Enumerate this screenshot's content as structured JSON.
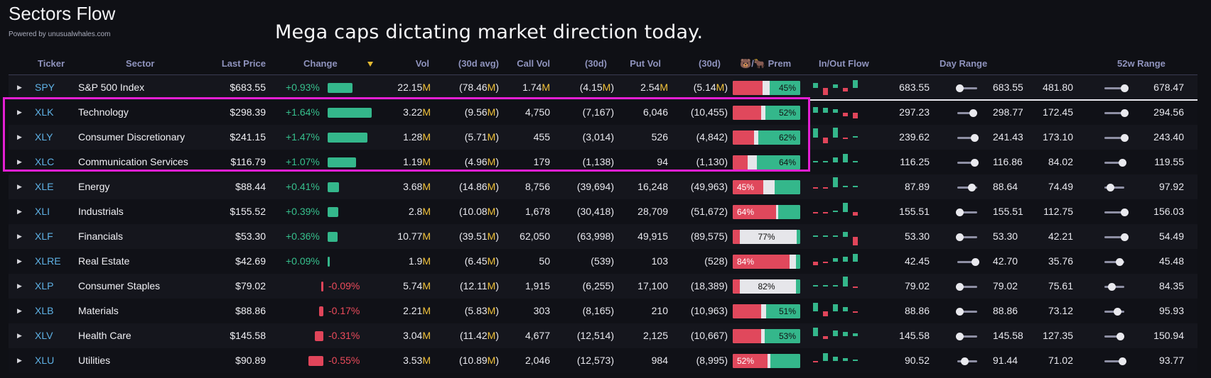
{
  "app": {
    "title": "Sectors Flow",
    "powered_by": "Powered by unusualwhales.com",
    "annotation": "Mega caps dictating market direction today."
  },
  "colors": {
    "background": "#0f1015",
    "positive": "#36c08d",
    "negative": "#ec4b5b",
    "ticker": "#5fb2e6",
    "million_suffix": "#f2c33b",
    "highlight_box": "#e41fd3"
  },
  "headers": {
    "ticker": "Ticker",
    "sector": "Sector",
    "last_price": "Last Price",
    "change": "Change",
    "vol": "Vol",
    "vol_avg": "(30d avg)",
    "call_vol": "Call Vol",
    "call_30d": "(30d)",
    "put_vol": "Put Vol",
    "put_30d": "(30d)",
    "prem_bear": "🐻",
    "prem_sep": "/",
    "prem_bull": "🐂",
    "prem": "Prem",
    "flow": "In/Out Flow",
    "day_range": "Day Range",
    "wk52_range": "52w Range"
  },
  "rows": [
    {
      "ticker": "SPY",
      "sector": "S&P 500 Index",
      "price": "$683.55",
      "change": "+0.93%",
      "change_pct": 0.93,
      "vol": "22.15",
      "vol_unit": "M",
      "vol_avg_open": "(78.46",
      "vol_avg_unit": "M",
      "vol_avg_close": ")",
      "call_vol": "1.74",
      "call_vol_unit": "M",
      "call_30d_open": "(4.15",
      "call_30d_unit": "M",
      "call_30d_close": ")",
      "put_vol": "2.54",
      "put_vol_unit": "M",
      "put_30d_open": "(5.14",
      "put_30d_unit": "M",
      "put_30d_close": ")",
      "prem_label": "45%",
      "prem_label_side": "bull",
      "bear_pct": 0.44,
      "bull_pct": 0.45,
      "flow": [
        0.3,
        -0.4,
        0.2,
        -0.2,
        0.45
      ],
      "day_low": "683.55",
      "day_high": "683.55",
      "day_pos": 0.1,
      "wk_low": "481.80",
      "wk_high": "678.47",
      "wk_pos": 1.0
    },
    {
      "ticker": "XLK",
      "sector": "Technology",
      "price": "$298.39",
      "change": "+1.64%",
      "change_pct": 1.64,
      "vol": "3.22",
      "vol_unit": "M",
      "vol_avg_open": "(9.56",
      "vol_avg_unit": "M",
      "vol_avg_close": ")",
      "call_vol": "4,750",
      "call_30d_open": "(7,167",
      "call_30d_close": ")",
      "put_vol": "6,046",
      "put_30d_open": "(10,455",
      "put_30d_close": ")",
      "prem_label": "52%",
      "prem_label_side": "bull",
      "bear_pct": 0.42,
      "bull_pct": 0.52,
      "flow": [
        0.35,
        0.3,
        0.2,
        -0.2,
        -0.35
      ],
      "day_low": "297.23",
      "day_high": "298.77",
      "day_pos": 0.8,
      "wk_low": "172.45",
      "wk_high": "294.56",
      "wk_pos": 1.0
    },
    {
      "ticker": "XLY",
      "sector": "Consumer Discretionary",
      "price": "$241.15",
      "change": "+1.47%",
      "change_pct": 1.47,
      "vol": "1.28",
      "vol_unit": "M",
      "vol_avg_open": "(5.71",
      "vol_avg_unit": "M",
      "vol_avg_close": ")",
      "call_vol": "455",
      "call_30d_open": "(3,014",
      "call_30d_close": ")",
      "put_vol": "526",
      "put_30d_open": "(4,842",
      "put_30d_close": ")",
      "prem_label": "62%",
      "prem_label_side": "bull",
      "bear_pct": 0.32,
      "bull_pct": 0.62,
      "flow": [
        0.55,
        -0.35,
        0.6,
        -0.1,
        0.0
      ],
      "day_low": "239.62",
      "day_high": "241.43",
      "day_pos": 0.85,
      "wk_low": "173.10",
      "wk_high": "243.40",
      "wk_pos": 1.0
    },
    {
      "ticker": "XLC",
      "sector": "Communication Services",
      "price": "$116.79",
      "change": "+1.07%",
      "change_pct": 1.07,
      "vol": "1.19",
      "vol_unit": "M",
      "vol_avg_open": "(4.96",
      "vol_avg_unit": "M",
      "vol_avg_close": ")",
      "call_vol": "179",
      "call_30d_open": "(1,138",
      "call_30d_close": ")",
      "put_vol": "94",
      "put_30d_open": "(1,130",
      "put_30d_close": ")",
      "prem_label": "64%",
      "prem_label_side": "bull",
      "bear_pct": 0.22,
      "bull_pct": 0.64,
      "flow": [
        0.0,
        0.1,
        0.3,
        0.5,
        0.0
      ],
      "day_low": "116.25",
      "day_high": "116.86",
      "day_pos": 0.85,
      "wk_low": "84.02",
      "wk_high": "119.55",
      "wk_pos": 0.9
    },
    {
      "ticker": "XLE",
      "sector": "Energy",
      "price": "$88.44",
      "change": "+0.41%",
      "change_pct": 0.41,
      "vol": "3.68",
      "vol_unit": "M",
      "vol_avg_open": "(14.86",
      "vol_avg_unit": "M",
      "vol_avg_close": ")",
      "call_vol": "8,756",
      "call_30d_open": "(39,694",
      "call_30d_close": ")",
      "put_vol": "16,248",
      "put_30d_open": "(49,963",
      "put_30d_close": ")",
      "prem_label": "45%",
      "prem_label_side": "bear",
      "bear_pct": 0.45,
      "bull_pct": 0.38,
      "flow": [
        -0.05,
        -0.05,
        0.6,
        0.0,
        0.0
      ],
      "day_low": "87.89",
      "day_high": "88.64",
      "day_pos": 0.7,
      "wk_low": "74.49",
      "wk_high": "97.92",
      "wk_pos": 0.3
    },
    {
      "ticker": "XLI",
      "sector": "Industrials",
      "price": "$155.52",
      "change": "+0.39%",
      "change_pct": 0.39,
      "vol": "2.8",
      "vol_unit": "M",
      "vol_avg_open": "(10.08",
      "vol_avg_unit": "M",
      "vol_avg_close": ")",
      "call_vol": "1,678",
      "call_30d_open": "(30,418",
      "call_30d_close": ")",
      "put_vol": "28,709",
      "put_30d_open": "(51,672",
      "put_30d_close": ")",
      "prem_label": "64%",
      "prem_label_side": "bear",
      "bear_pct": 0.64,
      "bull_pct": 0.33,
      "flow": [
        -0.05,
        -0.1,
        0.0,
        0.55,
        -0.2
      ],
      "day_low": "155.51",
      "day_high": "155.51",
      "day_pos": 0.1,
      "wk_low": "112.75",
      "wk_high": "156.03",
      "wk_pos": 1.0
    },
    {
      "ticker": "XLF",
      "sector": "Financials",
      "price": "$53.30",
      "change": "+0.36%",
      "change_pct": 0.36,
      "vol": "10.77",
      "vol_unit": "M",
      "vol_avg_open": "(39.51",
      "vol_avg_unit": "M",
      "vol_avg_close": ")",
      "call_vol": "62,050",
      "call_30d_open": "(63,998",
      "call_30d_close": ")",
      "put_vol": "49,915",
      "put_30d_open": "(89,575",
      "put_30d_close": ")",
      "prem_label": "77%",
      "prem_label_side": "mid",
      "bear_pct": 0.1,
      "bull_pct": 0.05,
      "flow": [
        0.05,
        0.0,
        0.0,
        0.3,
        -0.5
      ],
      "day_low": "53.30",
      "day_high": "53.30",
      "day_pos": 0.1,
      "wk_low": "42.21",
      "wk_high": "54.49",
      "wk_pos": 1.0
    },
    {
      "ticker": "XLRE",
      "sector": "Real Estate",
      "price": "$42.69",
      "change": "+0.09%",
      "change_pct": 0.09,
      "vol": "1.9",
      "vol_unit": "M",
      "vol_avg_open": "(6.45",
      "vol_avg_unit": "M",
      "vol_avg_close": ")",
      "call_vol": "50",
      "call_30d_open": "(539",
      "call_30d_close": ")",
      "put_vol": "103",
      "put_30d_open": "(528",
      "put_30d_close": ")",
      "prem_label": "84%",
      "prem_label_side": "bear",
      "bear_pct": 0.84,
      "bull_pct": 0.06,
      "flow": [
        -0.2,
        -0.05,
        0.2,
        0.3,
        0.45
      ],
      "day_low": "42.45",
      "day_high": "42.70",
      "day_pos": 0.9,
      "wk_low": "35.76",
      "wk_high": "45.48",
      "wk_pos": 0.75
    },
    {
      "ticker": "XLP",
      "sector": "Consumer Staples",
      "price": "$79.02",
      "change": "-0.09%",
      "change_pct": -0.09,
      "vol": "5.74",
      "vol_unit": "M",
      "vol_avg_open": "(12.11",
      "vol_avg_unit": "M",
      "vol_avg_close": ")",
      "call_vol": "1,915",
      "call_30d_open": "(6,255",
      "call_30d_close": ")",
      "put_vol": "17,100",
      "put_30d_open": "(18,389",
      "put_30d_close": ")",
      "prem_label": "82%",
      "prem_label_side": "mid",
      "bear_pct": 0.1,
      "bull_pct": 0.06,
      "flow": [
        0.0,
        0.0,
        0.0,
        0.6,
        -0.05
      ],
      "day_low": "79.02",
      "day_high": "79.02",
      "day_pos": 0.1,
      "wk_low": "75.61",
      "wk_high": "84.35",
      "wk_pos": 0.35
    },
    {
      "ticker": "XLB",
      "sector": "Materials",
      "price": "$88.86",
      "change": "-0.17%",
      "change_pct": -0.17,
      "vol": "2.21",
      "vol_unit": "M",
      "vol_avg_open": "(5.83",
      "vol_avg_unit": "M",
      "vol_avg_close": ")",
      "call_vol": "303",
      "call_30d_open": "(8,165",
      "call_30d_close": ")",
      "put_vol": "210",
      "put_30d_open": "(10,963",
      "put_30d_close": ")",
      "prem_label": "51%",
      "prem_label_side": "bull",
      "bear_pct": 0.42,
      "bull_pct": 0.51,
      "flow": [
        0.5,
        -0.3,
        0.4,
        0.25,
        -0.1
      ],
      "day_low": "88.86",
      "day_high": "88.86",
      "day_pos": 0.1,
      "wk_low": "73.12",
      "wk_high": "95.93",
      "wk_pos": 0.65
    },
    {
      "ticker": "XLV",
      "sector": "Health Care",
      "price": "$145.58",
      "change": "-0.31%",
      "change_pct": -0.31,
      "vol": "3.04",
      "vol_unit": "M",
      "vol_avg_open": "(11.42",
      "vol_avg_unit": "M",
      "vol_avg_close": ")",
      "call_vol": "4,677",
      "call_30d_open": "(12,514",
      "call_30d_close": ")",
      "put_vol": "2,125",
      "put_30d_open": "(10,667",
      "put_30d_close": ")",
      "prem_label": "53%",
      "prem_label_side": "bull",
      "bear_pct": 0.42,
      "bull_pct": 0.53,
      "flow": [
        0.5,
        -0.15,
        0.35,
        0.25,
        0.15
      ],
      "day_low": "145.58",
      "day_high": "145.58",
      "day_pos": 0.1,
      "wk_low": "127.35",
      "wk_high": "150.94",
      "wk_pos": 0.8
    },
    {
      "ticker": "XLU",
      "sector": "Utilities",
      "price": "$90.89",
      "change": "-0.55%",
      "change_pct": -0.55,
      "vol": "3.53",
      "vol_unit": "M",
      "vol_avg_open": "(10.89",
      "vol_avg_unit": "M",
      "vol_avg_close": ")",
      "call_vol": "2,046",
      "call_30d_open": "(12,573",
      "call_30d_close": ")",
      "put_vol": "984",
      "put_30d_open": "(8,995",
      "put_30d_close": ")",
      "prem_label": "52%",
      "prem_label_side": "bear",
      "bear_pct": 0.52,
      "bull_pct": 0.44,
      "flow": [
        -0.05,
        0.45,
        0.25,
        0.15,
        0.05
      ],
      "day_low": "90.52",
      "day_high": "91.44",
      "day_pos": 0.35,
      "wk_low": "71.02",
      "wk_high": "93.77",
      "wk_pos": 0.9
    }
  ]
}
